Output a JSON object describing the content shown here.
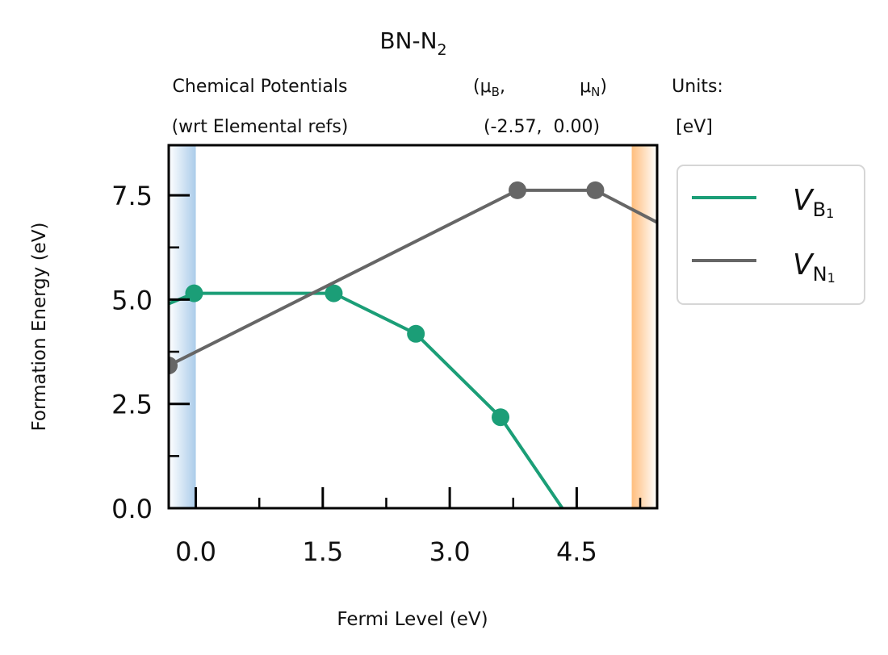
{
  "chart_data": {
    "type": "line",
    "title": {
      "base": "BN-N",
      "sub": "2"
    },
    "header": {
      "left_line1": "Chemical Potentials",
      "left_line2": "(wrt Elemental refs)",
      "mu_b_label": {
        "pre": "(μ",
        "sub": "B",
        "post": ","
      },
      "mu_n_label": {
        "pre": "μ",
        "sub": "N",
        "post": ")"
      },
      "values_line": "(-2.57,  0.00)",
      "units_line1": "Units:",
      "units_line2": "[eV]"
    },
    "xlabel": "Fermi Level (eV)",
    "ylabel": "Formation Energy (eV)",
    "xlim": [
      -0.32,
      5.45
    ],
    "ylim": [
      0,
      8.7
    ],
    "x_major_ticks": [
      0.0,
      1.5,
      3.0,
      4.5
    ],
    "x_tick_labels": [
      "0.0",
      "1.5",
      "3.0",
      "4.5"
    ],
    "x_minor_ticks": [
      0.75,
      2.25,
      3.75,
      5.25
    ],
    "y_major_ticks": [
      0.0,
      2.5,
      5.0,
      7.5
    ],
    "y_tick_labels": [
      "0.0",
      "2.5",
      "5.0",
      "7.5"
    ],
    "y_minor_ticks": [
      1.25,
      3.75,
      6.25
    ],
    "vbm_band": {
      "from": -0.32,
      "to": 0.0,
      "color": "#9cc3e6"
    },
    "cbm_band": {
      "from": 5.15,
      "to": 5.45,
      "color": "#ffb266"
    },
    "legend_position": "outside-right",
    "series": [
      {
        "name": {
          "italic": "V",
          "sub": "B",
          "subsub": "1"
        },
        "color": "#1b9e77",
        "x": [
          -0.32,
          -0.02,
          1.63,
          2.6,
          3.6,
          4.33
        ],
        "y": [
          4.9,
          5.15,
          5.15,
          4.18,
          2.18,
          0.0
        ],
        "markers": [
          [
            -0.02,
            5.15
          ],
          [
            1.63,
            5.15
          ],
          [
            2.6,
            4.18
          ],
          [
            3.6,
            2.18
          ]
        ]
      },
      {
        "name": {
          "italic": "V",
          "sub": "N",
          "subsub": "1"
        },
        "color": "#666666",
        "x": [
          -0.32,
          3.8,
          4.72,
          5.45
        ],
        "y": [
          3.42,
          7.62,
          7.62,
          6.85
        ],
        "markers": [
          [
            -0.32,
            3.42
          ],
          [
            3.8,
            7.62
          ],
          [
            4.72,
            7.62
          ]
        ]
      }
    ]
  }
}
